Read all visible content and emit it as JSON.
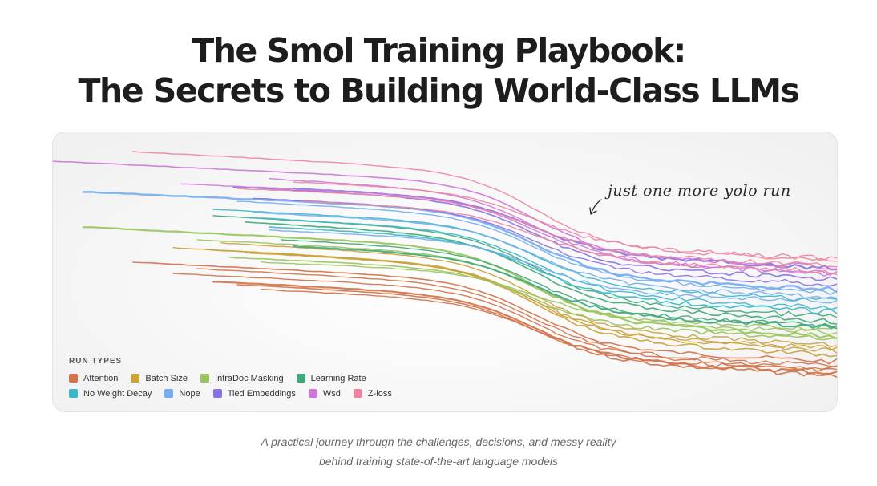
{
  "header": {
    "title_line1": "The Smol Training Playbook:",
    "title_line2": "The Secrets to Building World-Class LLMs"
  },
  "annotation": "just one more yolo run",
  "subtitle": {
    "line1": "A practical journey through the challenges, decisions, and messy reality",
    "line2": "behind training state-of-the-art language models"
  },
  "chart_data": {
    "type": "line",
    "title": "",
    "xlabel": "",
    "ylabel": "",
    "grid": false,
    "legend_title": "RUN TYPES",
    "legend_position": "bottom-left",
    "series": [
      {
        "name": "Attention",
        "color": "#d3734a"
      },
      {
        "name": "Batch Size",
        "color": "#c9a23a"
      },
      {
        "name": "IntraDoc Masking",
        "color": "#9ac45e"
      },
      {
        "name": "Learning Rate",
        "color": "#3fa87a"
      },
      {
        "name": "No Weight Decay",
        "color": "#3ab8c8"
      },
      {
        "name": "Nope",
        "color": "#74aef0"
      },
      {
        "name": "Tied Embeddings",
        "color": "#8a72e6"
      },
      {
        "name": "Wsd",
        "color": "#cf78d8"
      },
      {
        "name": "Z-loss",
        "color": "#ee85a0"
      }
    ]
  }
}
